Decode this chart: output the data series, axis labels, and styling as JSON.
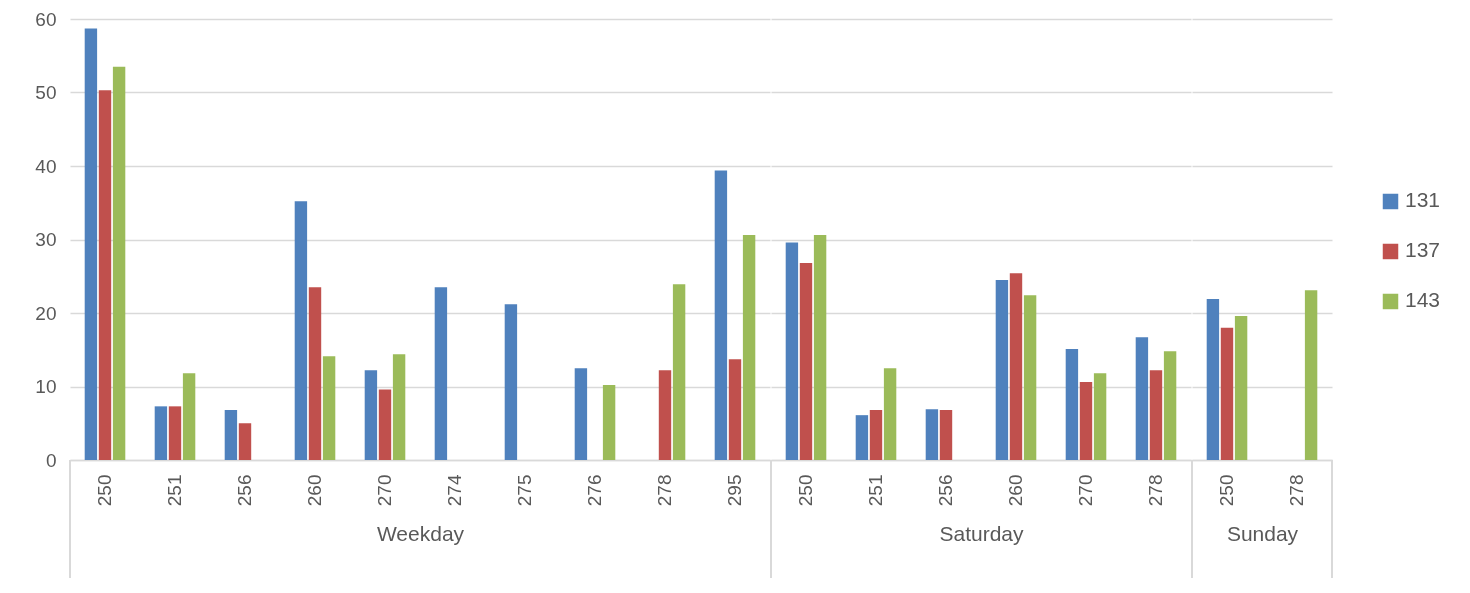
{
  "chart_data": [
    {
      "type": "bar",
      "xlabel": "Weekday",
      "categories": [
        "250",
        "251",
        "256",
        "260",
        "270",
        "274",
        "275",
        "276",
        "278",
        "295"
      ],
      "series": [
        {
          "name": "131",
          "color": "#4f81bd",
          "values": [
            58.7,
            7.3,
            6.8,
            35.2,
            12.2,
            23.5,
            21.2,
            12.5,
            null,
            39.4
          ]
        },
        {
          "name": "137",
          "color": "#c0504d",
          "values": [
            50.3,
            7.3,
            5.0,
            23.5,
            9.6,
            null,
            null,
            null,
            12.2,
            13.7
          ]
        },
        {
          "name": "143",
          "color": "#9bbb59",
          "values": [
            53.5,
            11.8,
            null,
            14.1,
            14.4,
            null,
            null,
            10.2,
            23.9,
            30.6
          ]
        }
      ],
      "ylim": [
        0,
        60
      ],
      "yticks": [
        0,
        10,
        20,
        30,
        40,
        50,
        60
      ],
      "grid": "y",
      "legend": "right"
    },
    {
      "type": "bar",
      "xlabel": "Saturday",
      "categories": [
        "250",
        "251",
        "256",
        "260",
        "270",
        "278"
      ],
      "series": [
        {
          "name": "131",
          "color": "#4f81bd",
          "values": [
            29.6,
            6.1,
            6.9,
            24.5,
            15.1,
            16.7
          ]
        },
        {
          "name": "137",
          "color": "#c0504d",
          "values": [
            26.8,
            6.8,
            6.8,
            25.4,
            10.6,
            12.2
          ]
        },
        {
          "name": "143",
          "color": "#9bbb59",
          "values": [
            30.6,
            12.5,
            null,
            22.4,
            11.8,
            14.8
          ]
        }
      ],
      "ylim": [
        0,
        60
      ],
      "yticks": [
        0,
        10,
        20,
        30,
        40,
        50,
        60
      ],
      "grid": "y",
      "tick_labels": "x"
    },
    {
      "type": "bar",
      "xlabel": "Sunday",
      "categories": [
        "250",
        "278"
      ],
      "series": [
        {
          "name": "131",
          "color": "#4f81bd",
          "values": [
            21.9,
            null
          ]
        },
        {
          "name": "137",
          "color": "#c0504d",
          "values": [
            18.0,
            null
          ]
        },
        {
          "name": "143",
          "color": "#9bbb59",
          "values": [
            19.6,
            23.1
          ]
        }
      ],
      "ylim": [
        0,
        60
      ],
      "yticks": [
        0,
        10,
        20,
        30,
        40,
        50,
        60
      ],
      "grid": "y",
      "tick_labels": "x"
    }
  ]
}
